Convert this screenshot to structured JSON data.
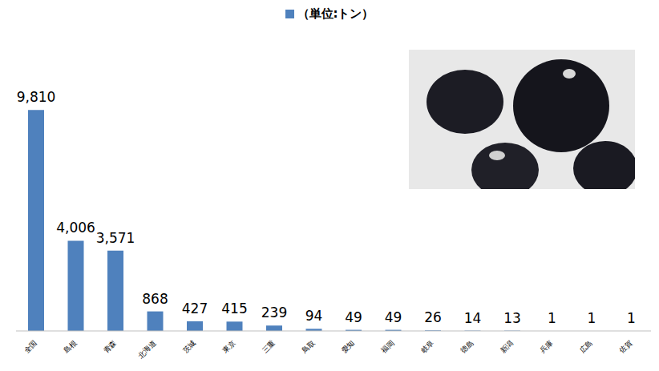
{
  "chart_data": {
    "type": "bar",
    "categories": [
      "全国",
      "島根",
      "青森",
      "北海道",
      "茨城",
      "東京",
      "三重",
      "鳥取",
      "愛知",
      "福岡",
      "岐阜",
      "徳島",
      "新潟",
      "兵庫",
      "広島",
      "佐賀"
    ],
    "series": [
      {
        "name": "（単位:トン）",
        "color": "#4f81bd",
        "values": [
          9810,
          4006,
          3571,
          868,
          427,
          415,
          239,
          94,
          49,
          49,
          26,
          14,
          13,
          1,
          1,
          1
        ],
        "value_labels": [
          "9,810",
          "4,006",
          "3,571",
          "868",
          "427",
          "415",
          "239",
          "94",
          "49",
          "49",
          "26",
          "14",
          "13",
          "1",
          "1",
          "1"
        ]
      }
    ],
    "ylim": [
      0,
      10000
    ],
    "data_labels": true,
    "legend": "top",
    "tick_labels": "x"
  }
}
